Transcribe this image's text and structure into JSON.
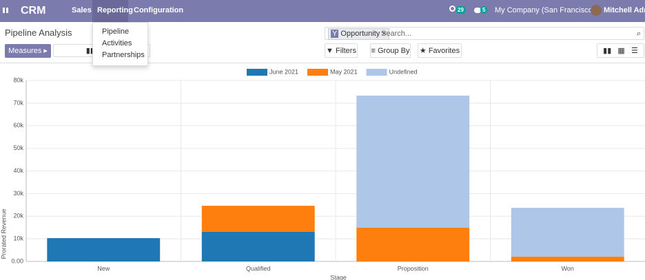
{
  "navbar": {
    "app": "CRM",
    "menus": [
      "Sales",
      "Reporting",
      "Configuration"
    ],
    "activity_count": 29,
    "message_count": 5,
    "company": "My Company (San Francisco)",
    "user": "Mitchell Admin"
  },
  "reporting_menu": [
    "Pipeline",
    "Activities",
    "Partnerships"
  ],
  "control_panel": {
    "breadcrumb": "Pipeline Analysis",
    "measures": "Measures",
    "facet": "Opportunity",
    "search_placeholder": "Search...",
    "filters": "Filters",
    "group_by": "Group By",
    "favorites": "Favorites"
  },
  "chart_data": {
    "type": "bar",
    "stacked": true,
    "x_label": "Stage",
    "y_label": "Prorated Revenue",
    "categories": [
      "New",
      "Qualified",
      "Proposition",
      "Won"
    ],
    "series": [
      {
        "name": "June 2021",
        "color": "#1f77b4",
        "values": [
          10300,
          13100,
          0,
          0
        ]
      },
      {
        "name": "May 2021",
        "color": "#ff7f0e",
        "values": [
          0,
          11500,
          14900,
          2100
        ]
      },
      {
        "name": "Undefined",
        "color": "#aec7e8",
        "values": [
          0,
          0,
          58400,
          21600
        ]
      }
    ],
    "ylim": [
      0,
      80000
    ],
    "yticks": [
      {
        "value": 0,
        "label": "0.00"
      },
      {
        "value": 10000,
        "label": "10k"
      },
      {
        "value": 20000,
        "label": "20k"
      },
      {
        "value": 30000,
        "label": "30k"
      },
      {
        "value": 40000,
        "label": "40k"
      },
      {
        "value": 50000,
        "label": "50k"
      },
      {
        "value": 60000,
        "label": "60k"
      },
      {
        "value": 70000,
        "label": "70k"
      },
      {
        "value": 80000,
        "label": "80k"
      }
    ],
    "grid": true
  }
}
